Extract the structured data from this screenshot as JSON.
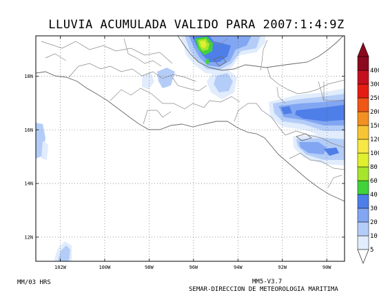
{
  "title": "LLUVIA ACUMULADA VALIDO PARA 2007:1:4:9Z",
  "footer": {
    "left": "MM/03 HRS",
    "model": "MM5-V3.7",
    "agency": "SEMAR-DIRECCION DE METEOROLOGIA MARITIMA"
  },
  "map": {
    "lon_range": [
      -103.1,
      -89.2
    ],
    "lat_range": [
      11.1,
      19.5
    ],
    "lon_ticks": [
      {
        "value": -102,
        "label": "102W"
      },
      {
        "value": -100,
        "label": "100W"
      },
      {
        "value": -98,
        "label": "98W"
      },
      {
        "value": -96,
        "label": "96W"
      },
      {
        "value": -94,
        "label": "94W"
      },
      {
        "value": -92,
        "label": "92W"
      },
      {
        "value": -90,
        "label": "90W"
      }
    ],
    "lat_ticks": [
      {
        "value": 12,
        "label": "12N"
      },
      {
        "value": 14,
        "label": "14N"
      },
      {
        "value": 16,
        "label": "16N"
      },
      {
        "value": 18,
        "label": "18N"
      }
    ],
    "grid": "dotted"
  },
  "colorbar": {
    "levels": [
      "5",
      "10",
      "20",
      "30",
      "40",
      "60",
      "80",
      "100",
      "120",
      "150",
      "200",
      "250",
      "300",
      "400"
    ],
    "colors": [
      "#e1ecfc",
      "#b4cdf8",
      "#82a6f2",
      "#4e7ee8",
      "#41d23c",
      "#a6e52c",
      "#e0f02e",
      "#f7e846",
      "#f6c536",
      "#f39022",
      "#ef5716",
      "#e51d13",
      "#c4101e",
      "#8c0a1e"
    ]
  },
  "colors": {
    "coast": "#666666",
    "border": "#888888",
    "grid": "#555555"
  }
}
